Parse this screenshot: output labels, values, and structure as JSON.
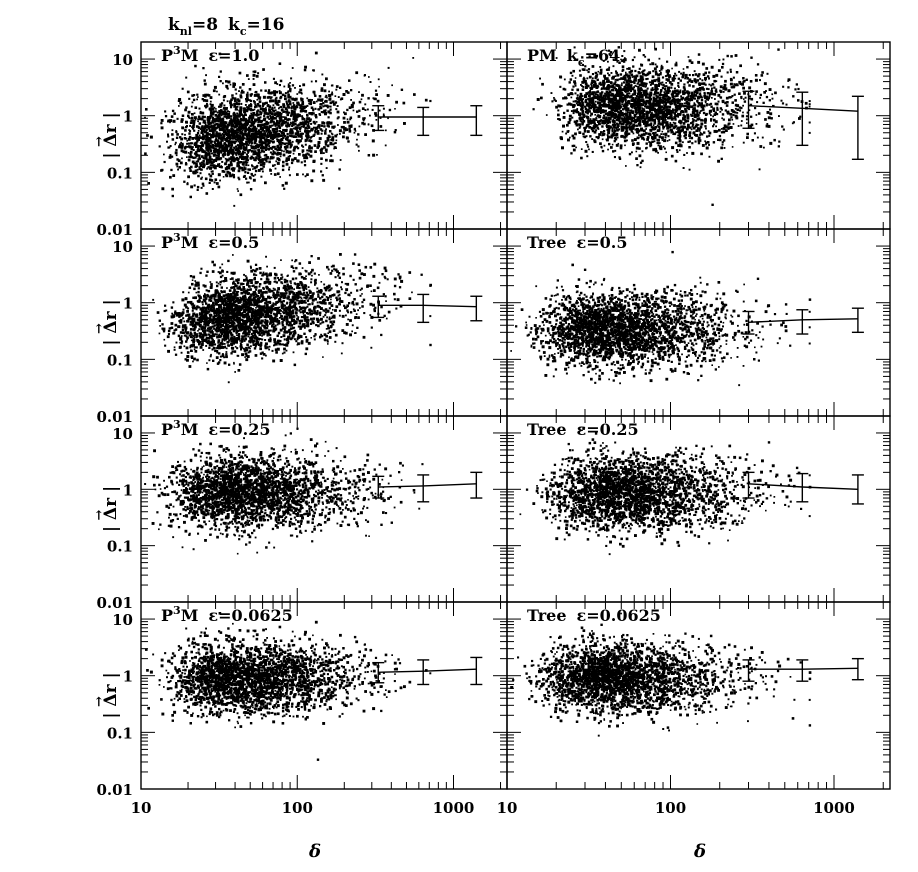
{
  "figure": {
    "header": {
      "k_nl_text": "k",
      "k_nl_sub": "nl",
      "k_nl_val": "=8",
      "k_c_text": "k",
      "k_c_sub": "c",
      "k_c_val": "=16"
    },
    "y_label": {
      "text": "| Δr |",
      "arrow": "→"
    },
    "x_label": "δ",
    "x_tick_labels": [
      "10",
      "100",
      "1000"
    ],
    "y_tick_labels": [
      "10",
      "1",
      "0.1",
      "0.01"
    ]
  },
  "chart_data": [
    {
      "type": "scatter",
      "panel": "left-1",
      "label": {
        "prefix": "P",
        "sup": "3",
        "mid": "M",
        "eps": "ε=1.0"
      },
      "xlim": [
        10,
        2200
      ],
      "ylim": [
        0.01,
        20
      ],
      "xscale": "log",
      "yscale": "log",
      "cloud": {
        "x_peak": 30,
        "y_median": 0.45,
        "spread_decades": 0.38,
        "trend": "rising"
      },
      "series": [
        {
          "name": "mean",
          "x": [
            330,
            640,
            1400
          ],
          "y": [
            0.95,
            0.95,
            0.95
          ],
          "yerr_low": [
            0.55,
            0.45,
            0.45
          ],
          "yerr_high": [
            1.5,
            1.4,
            1.5
          ]
        }
      ]
    },
    {
      "type": "scatter",
      "panel": "right-1",
      "label": {
        "prefix": "PM",
        "sup": "",
        "mid": "",
        "eps": "k",
        "k_sub": "c",
        "k_val": "=64"
      },
      "xlim": [
        10,
        2200
      ],
      "ylim": [
        0.01,
        20
      ],
      "xscale": "log",
      "yscale": "log",
      "cloud": {
        "x_peak": 40,
        "y_median": 1.5,
        "spread_decades": 0.36,
        "trend": "flat"
      },
      "series": [
        {
          "name": "mean",
          "x": [
            300,
            640,
            1400
          ],
          "y": [
            1.5,
            1.35,
            1.2
          ],
          "yerr_low": [
            0.6,
            0.3,
            0.17
          ],
          "yerr_high": [
            2.7,
            2.6,
            2.2
          ]
        }
      ]
    },
    {
      "type": "scatter",
      "panel": "left-2",
      "label": {
        "prefix": "P",
        "sup": "3",
        "mid": "M",
        "eps": "ε=0.5"
      },
      "xlim": [
        10,
        2200
      ],
      "ylim": [
        0.01,
        20
      ],
      "xscale": "log",
      "yscale": "log",
      "cloud": {
        "x_peak": 30,
        "y_median": 0.55,
        "spread_decades": 0.34,
        "trend": "rising"
      },
      "series": [
        {
          "name": "mean",
          "x": [
            330,
            640,
            1400
          ],
          "y": [
            0.9,
            0.9,
            0.85
          ],
          "yerr_low": [
            0.55,
            0.45,
            0.48
          ],
          "yerr_high": [
            1.3,
            1.4,
            1.3
          ]
        }
      ]
    },
    {
      "type": "scatter",
      "panel": "right-2",
      "label": {
        "prefix": "Tree",
        "sup": "",
        "mid": "",
        "eps": "ε=0.5"
      },
      "xlim": [
        10,
        2200
      ],
      "ylim": [
        0.01,
        20
      ],
      "xscale": "log",
      "yscale": "log",
      "cloud": {
        "x_peak": 30,
        "y_median": 0.35,
        "spread_decades": 0.32,
        "trend": "flat"
      },
      "series": [
        {
          "name": "mean",
          "x": [
            300,
            640,
            1400
          ],
          "y": [
            0.45,
            0.5,
            0.52
          ],
          "yerr_low": [
            0.28,
            0.28,
            0.3
          ],
          "yerr_high": [
            0.7,
            0.75,
            0.8
          ]
        }
      ]
    },
    {
      "type": "scatter",
      "panel": "left-3",
      "label": {
        "prefix": "P",
        "sup": "3",
        "mid": "M",
        "eps": "ε=0.25"
      },
      "xlim": [
        10,
        2200
      ],
      "ylim": [
        0.01,
        20
      ],
      "xscale": "log",
      "yscale": "log",
      "cloud": {
        "x_peak": 30,
        "y_median": 0.9,
        "spread_decades": 0.32,
        "trend": "flat"
      },
      "series": [
        {
          "name": "mean",
          "x": [
            330,
            640,
            1400
          ],
          "y": [
            1.1,
            1.15,
            1.25
          ],
          "yerr_low": [
            0.7,
            0.6,
            0.7
          ],
          "yerr_high": [
            1.7,
            1.8,
            2.0
          ]
        }
      ]
    },
    {
      "type": "scatter",
      "panel": "right-3",
      "label": {
        "prefix": "Tree",
        "sup": "",
        "mid": "",
        "eps": "ε=0.25"
      },
      "xlim": [
        10,
        2200
      ],
      "ylim": [
        0.01,
        20
      ],
      "xscale": "log",
      "yscale": "log",
      "cloud": {
        "x_peak": 35,
        "y_median": 0.9,
        "spread_decades": 0.32,
        "trend": "flat"
      },
      "series": [
        {
          "name": "mean",
          "x": [
            300,
            640,
            1400
          ],
          "y": [
            1.25,
            1.1,
            1.0
          ],
          "yerr_low": [
            0.7,
            0.6,
            0.55
          ],
          "yerr_high": [
            2.0,
            1.9,
            1.8
          ]
        }
      ]
    },
    {
      "type": "scatter",
      "panel": "left-4",
      "label": {
        "prefix": "P",
        "sup": "3",
        "mid": "M",
        "eps": "ε=0.0625"
      },
      "xlim": [
        10,
        2200
      ],
      "ylim": [
        0.01,
        20
      ],
      "xscale": "log",
      "yscale": "log",
      "cloud": {
        "x_peak": 30,
        "y_median": 0.95,
        "spread_decades": 0.3,
        "trend": "flat"
      },
      "series": [
        {
          "name": "mean",
          "x": [
            330,
            640,
            1400
          ],
          "y": [
            1.15,
            1.2,
            1.3
          ],
          "yerr_low": [
            0.75,
            0.7,
            0.7
          ],
          "yerr_high": [
            1.7,
            1.9,
            2.1
          ]
        }
      ]
    },
    {
      "type": "scatter",
      "panel": "right-4",
      "label": {
        "prefix": "Tree",
        "sup": "",
        "mid": "",
        "eps": "ε=0.0625"
      },
      "xlim": [
        10,
        2200
      ],
      "ylim": [
        0.01,
        20
      ],
      "xscale": "log",
      "yscale": "log",
      "cloud": {
        "x_peak": 30,
        "y_median": 0.95,
        "spread_decades": 0.3,
        "trend": "flat"
      },
      "series": [
        {
          "name": "mean",
          "x": [
            300,
            640,
            1400
          ],
          "y": [
            1.3,
            1.3,
            1.35
          ],
          "yerr_low": [
            0.8,
            0.8,
            0.85
          ],
          "yerr_high": [
            1.9,
            1.9,
            2.0
          ]
        }
      ]
    }
  ]
}
